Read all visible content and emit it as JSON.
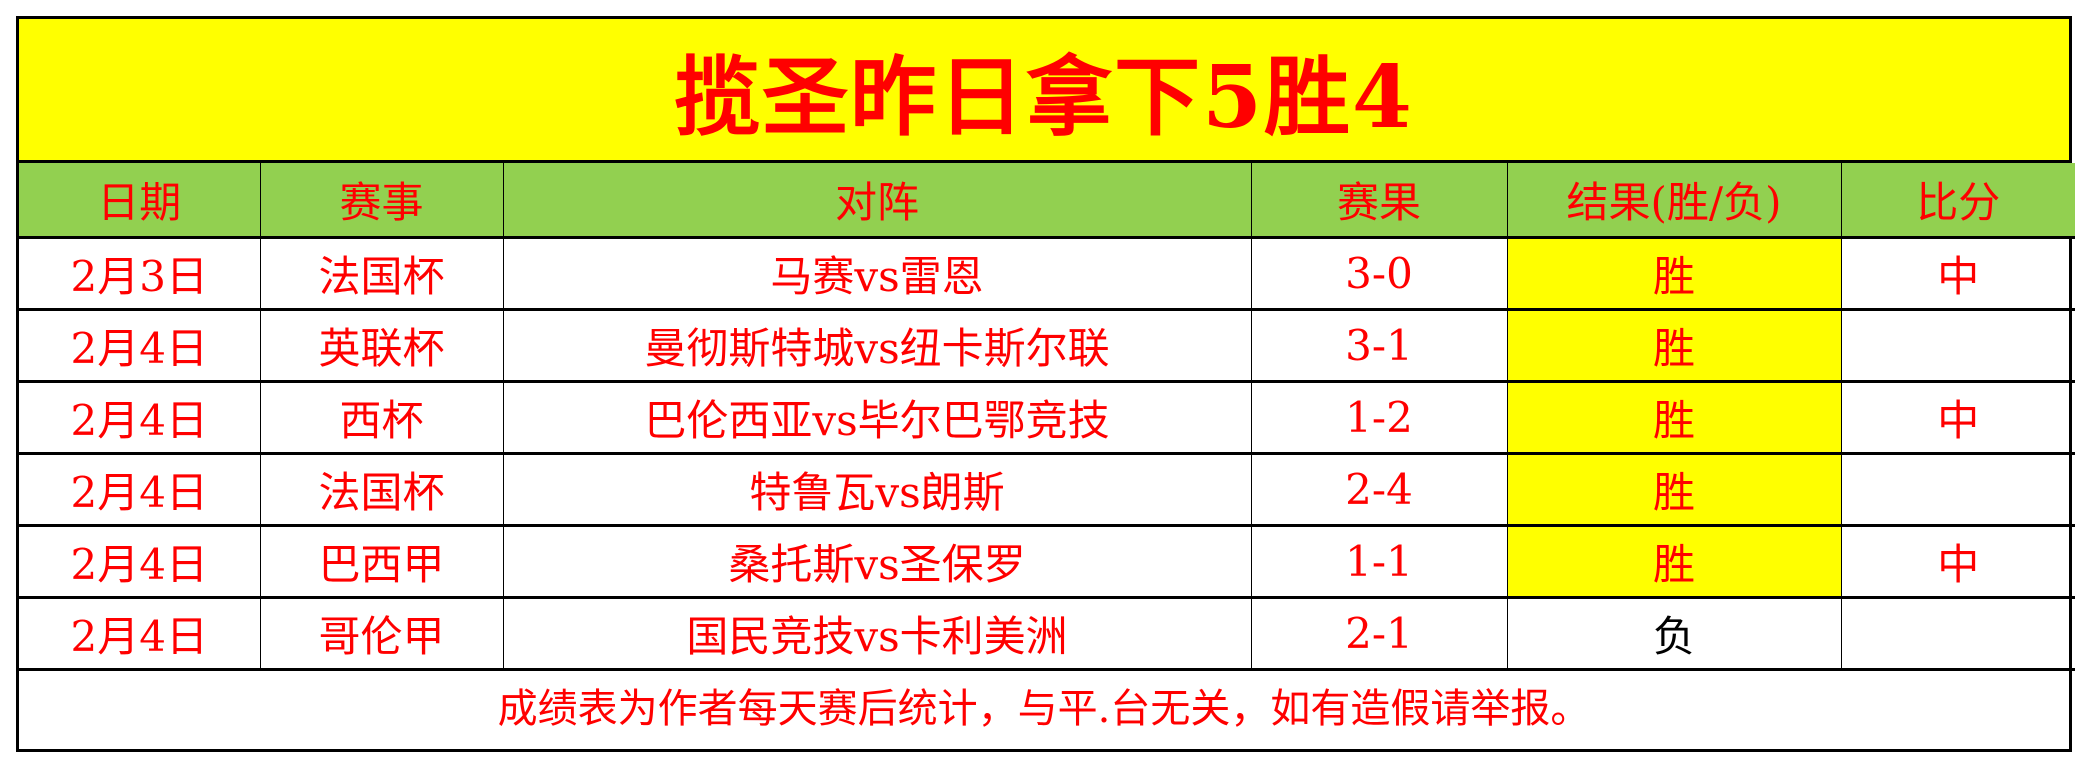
{
  "title": "揽圣昨日拿下5胜4",
  "columns": [
    "日期",
    "赛事",
    "对阵",
    "赛果",
    "结果(胜/负)",
    "比分"
  ],
  "rows": [
    {
      "date": "2月3日",
      "league": "法国杯",
      "match": "马赛vs雷恩",
      "score": "3-0",
      "result": "胜",
      "bifen": "中"
    },
    {
      "date": "2月4日",
      "league": "英联杯",
      "match": "曼彻斯特城vs纽卡斯尔联",
      "score": "3-1",
      "result": "胜",
      "bifen": ""
    },
    {
      "date": "2月4日",
      "league": "西杯",
      "match": "巴伦西亚vs毕尔巴鄂竞技",
      "score": "1-2",
      "result": "胜",
      "bifen": "中"
    },
    {
      "date": "2月4日",
      "league": "法国杯",
      "match": "特鲁瓦vs朗斯",
      "score": "2-4",
      "result": "胜",
      "bifen": ""
    },
    {
      "date": "2月4日",
      "league": "巴西甲",
      "match": "桑托斯vs圣保罗",
      "score": "1-1",
      "result": "胜",
      "bifen": "中"
    },
    {
      "date": "2月4日",
      "league": "哥伦甲",
      "match": "国民竞技vs卡利美洲",
      "score": "2-1",
      "result": "负",
      "bifen": ""
    }
  ],
  "footer": "成绩表为作者每天赛后统计，与平.台无关，如有造假请举报。",
  "colors": {
    "title_bg": "#ffff00",
    "header_bg": "#92d050",
    "win_bg": "#ffff00",
    "text": "#ff0000",
    "loss_text": "#000000"
  }
}
